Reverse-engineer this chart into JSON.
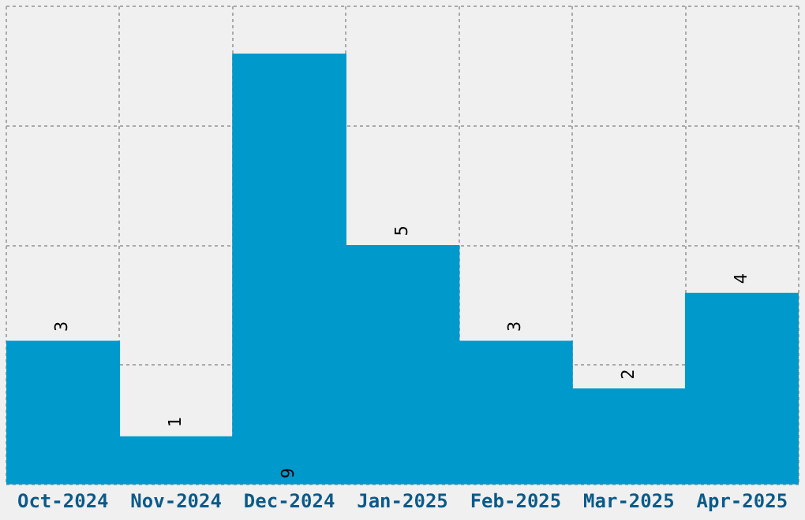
{
  "chart_data": {
    "type": "bar",
    "categories": [
      "Oct-2024",
      "Nov-2024",
      "Dec-2024",
      "Jan-2025",
      "Feb-2025",
      "Mar-2025",
      "Apr-2025"
    ],
    "values": [
      3,
      1,
      9,
      5,
      3,
      2,
      4
    ],
    "color": "#0099cc",
    "ylim": [
      0,
      10
    ],
    "yticks": [
      {
        "value": 0,
        "label": null
      },
      {
        "value": 2.5,
        "label": null
      },
      {
        "value": 5,
        "label": null
      },
      {
        "value": 7.5,
        "label": null
      },
      {
        "value": 10,
        "label": null
      }
    ],
    "tick_labels": "x",
    "grid": true,
    "data_labels": true
  }
}
